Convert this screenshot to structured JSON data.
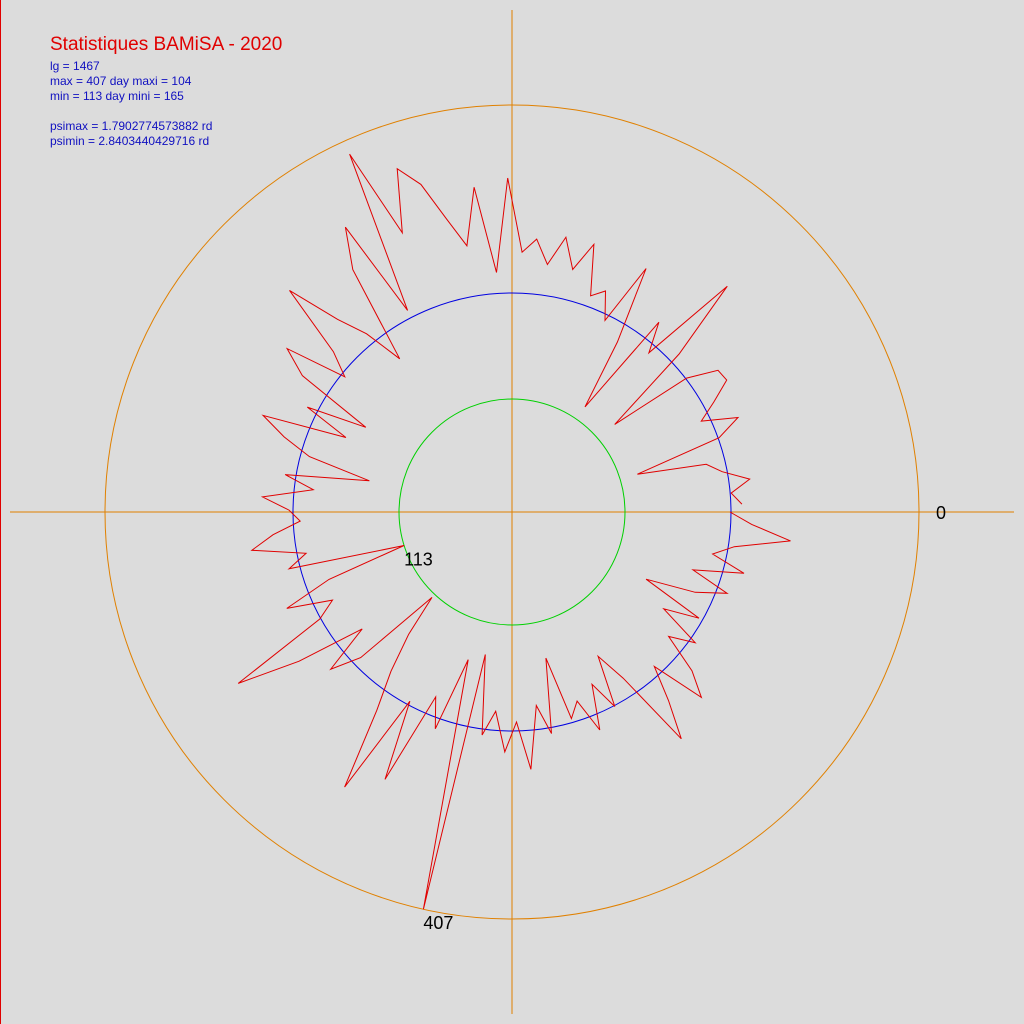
{
  "chart_data": {
    "type": "polar-line",
    "title": "Statistiques BAMiSA - 2020",
    "stats": [
      "lg = 1467",
      "max = 407  day maxi = 104",
      "min = 113   day mini = 165",
      "psimax = 1.7902774573882  rd",
      "psimin = 2.8403440429716  rd"
    ],
    "xlim": [
      0,
      365
    ],
    "xticks": [
      0
    ],
    "rlim": [
      0,
      500
    ],
    "axis_color": "#e08000",
    "reference_circles": [
      {
        "value": 407,
        "color": "#e08000"
      },
      {
        "value": 219,
        "color": "#0000e0"
      },
      {
        "value": 113,
        "color": "#00d000"
      }
    ],
    "series": [
      {
        "color": "#e00000",
        "x": [
          0,
          3,
          6,
          9,
          12,
          15,
          18,
          21,
          24,
          27,
          30,
          33,
          36,
          39,
          42,
          45,
          48,
          51,
          54,
          57,
          60,
          63,
          66,
          69,
          72,
          75,
          78,
          81,
          84,
          87,
          90,
          93,
          96,
          99,
          102,
          104,
          108,
          111,
          114,
          117,
          120,
          123,
          126,
          129,
          132,
          135,
          138,
          141,
          144,
          147,
          150,
          153,
          156,
          159,
          162,
          165,
          168,
          171,
          174,
          177,
          180,
          183,
          186,
          189,
          192,
          195,
          198,
          201,
          204,
          207,
          210,
          213,
          216,
          219,
          222,
          225,
          228,
          231,
          234,
          237,
          240,
          243,
          246,
          249,
          252,
          255,
          258,
          261,
          264,
          267,
          270,
          273,
          276,
          279,
          282,
          285,
          288,
          291,
          294,
          297,
          300,
          303,
          306,
          309,
          312,
          315,
          318,
          321,
          324,
          327,
          330,
          333,
          336,
          339,
          342,
          345,
          348,
          351,
          354,
          357,
          360,
          363
        ],
        "values": [
          218,
          240,
          280,
          225,
          205,
          240,
          190,
          230,
          200,
          150,
          215,
          180,
          225,
          200,
          240,
          265,
          210,
          245,
          283,
          200,
          168,
          220,
          190,
          235,
          200,
          215,
          150,
          225,
          195,
          258,
          210,
          240,
          200,
          225,
          145,
          407,
          154,
          230,
          200,
          296,
          215,
          322,
          240,
          200,
          160,
          117,
          210,
          240,
          190,
          260,
          323,
          220,
          200,
          245,
          195,
          113,
          230,
          210,
          263,
          240,
          212,
          223,
          250,
          200,
          230,
          146,
          210,
          240,
          267,
          182,
          230,
          169,
          250,
          278,
          215,
          240,
          314,
          260,
          230,
          190,
          290,
          330,
          227,
          393,
          300,
          362,
          340,
          300,
          270,
          327,
          240,
          334,
          260,
          274,
          250,
          280,
          250,
          280,
          230,
          240,
          213,
          278,
          200,
          128,
          240,
          210,
          312,
          230,
          135,
          220,
          250,
          252,
          230,
          210,
          245,
          220,
          131,
          200,
          214,
          240,
          220,
          230
        ],
        "value_labels": [
          null,
          null,
          null,
          null,
          null,
          null,
          null,
          null,
          null,
          null,
          null,
          null,
          null,
          null,
          null,
          null,
          null,
          null,
          null,
          null,
          null,
          null,
          null,
          null,
          null,
          null,
          null,
          null,
          null,
          null,
          null,
          null,
          null,
          null,
          null,
          "407",
          null,
          null,
          null,
          null,
          null,
          null,
          null,
          null,
          null,
          null,
          null,
          null,
          null,
          null,
          null,
          null,
          null,
          null,
          null,
          "113",
          null,
          null,
          null,
          null,
          null,
          null,
          null,
          null,
          null,
          null,
          null,
          null,
          null,
          null,
          null,
          null,
          null,
          null,
          null,
          null,
          null,
          null,
          null,
          null,
          null,
          null,
          null,
          null,
          null,
          null,
          null,
          null,
          null,
          null,
          null,
          null,
          null,
          null,
          null,
          null,
          null,
          null,
          null,
          null,
          null,
          null,
          null,
          null,
          null,
          null,
          null,
          null,
          null,
          null,
          null,
          null,
          null,
          null,
          null,
          null,
          null,
          null,
          null,
          null,
          null,
          null
        ]
      }
    ]
  }
}
